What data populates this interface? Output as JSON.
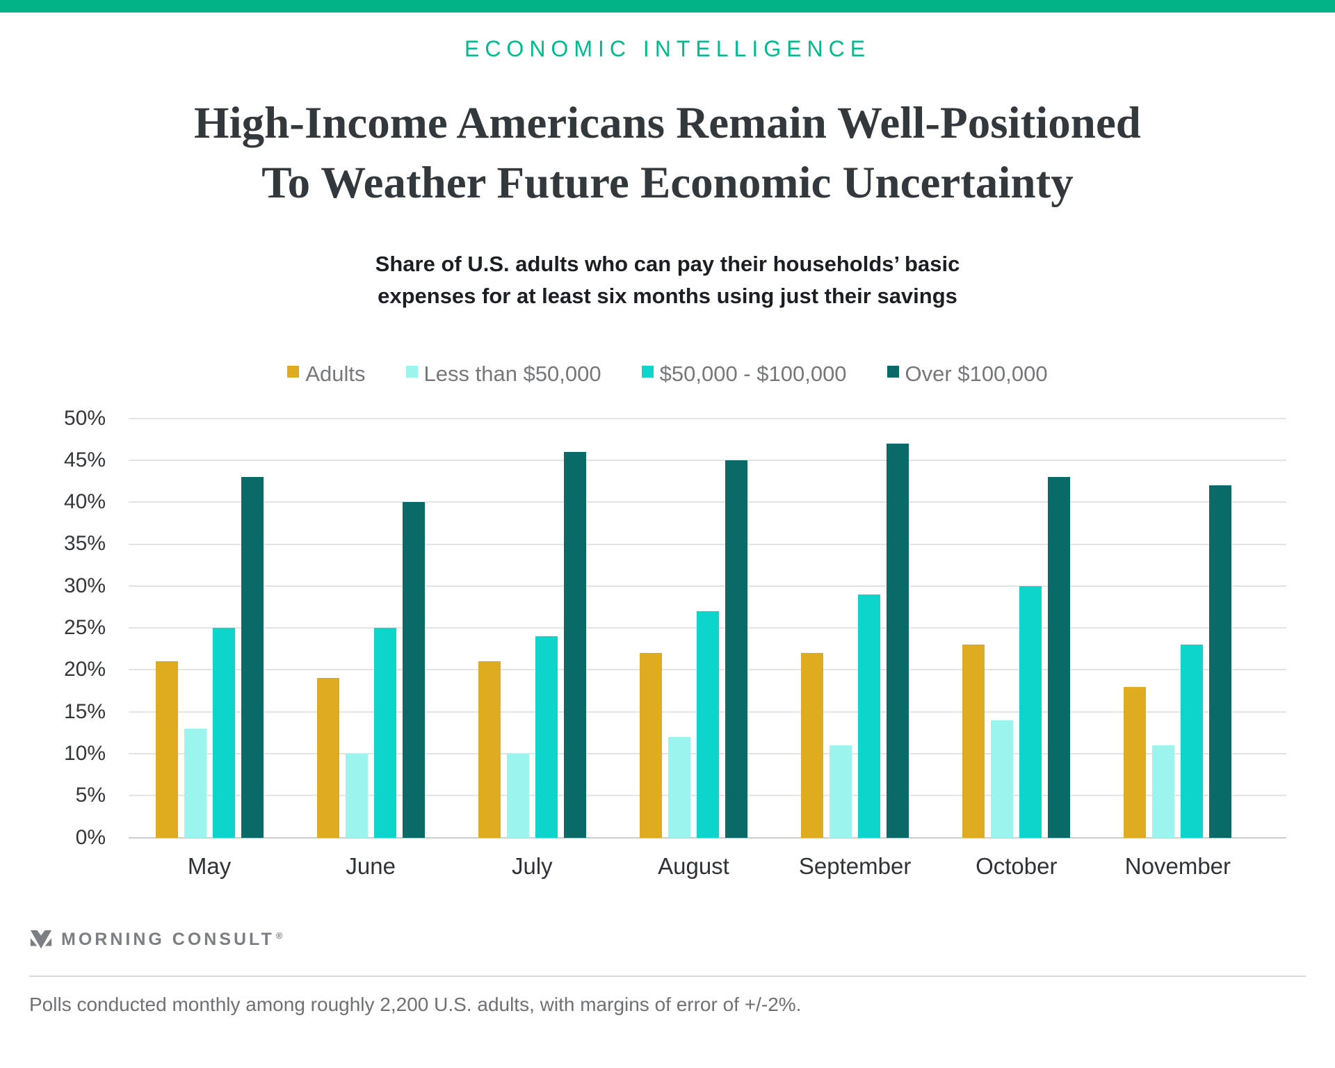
{
  "banner_color": "#00b286",
  "eyebrow": "ECONOMIC INTELLIGENCE",
  "title": "High-Income Americans Remain Well-Positioned\nTo Weather Future Economic Uncertainty",
  "subtitle": "Share of U.S. adults who can pay their households’ basic\nexpenses for at least six months using just their savings",
  "chart_data": {
    "type": "bar",
    "categories": [
      "May",
      "June",
      "July",
      "August",
      "September",
      "October",
      "November"
    ],
    "series": [
      {
        "name": "Adults",
        "color": "#dfac21",
        "values": [
          21,
          19,
          21,
          22,
          22,
          23,
          18
        ]
      },
      {
        "name": "Less than $50,000",
        "color": "#9bf5ee",
        "values": [
          13,
          10,
          10,
          12,
          11,
          14,
          11
        ]
      },
      {
        "name": "$50,000 - $100,000",
        "color": "#0ed5cb",
        "values": [
          25,
          25,
          24,
          27,
          29,
          30,
          23
        ]
      },
      {
        "name": "Over $100,000",
        "color": "#096a67",
        "values": [
          43,
          40,
          46,
          45,
          47,
          43,
          42
        ]
      }
    ],
    "ylim": [
      0,
      50
    ],
    "ytick_step": 5,
    "ytick_suffix": "%",
    "grid": true,
    "legend_position": "top"
  },
  "footer": {
    "brand": "MORNING CONSULT",
    "brand_registered": "®",
    "note": "Polls conducted monthly among roughly 2,200 U.S. adults, with margins of error of +/-2%."
  }
}
